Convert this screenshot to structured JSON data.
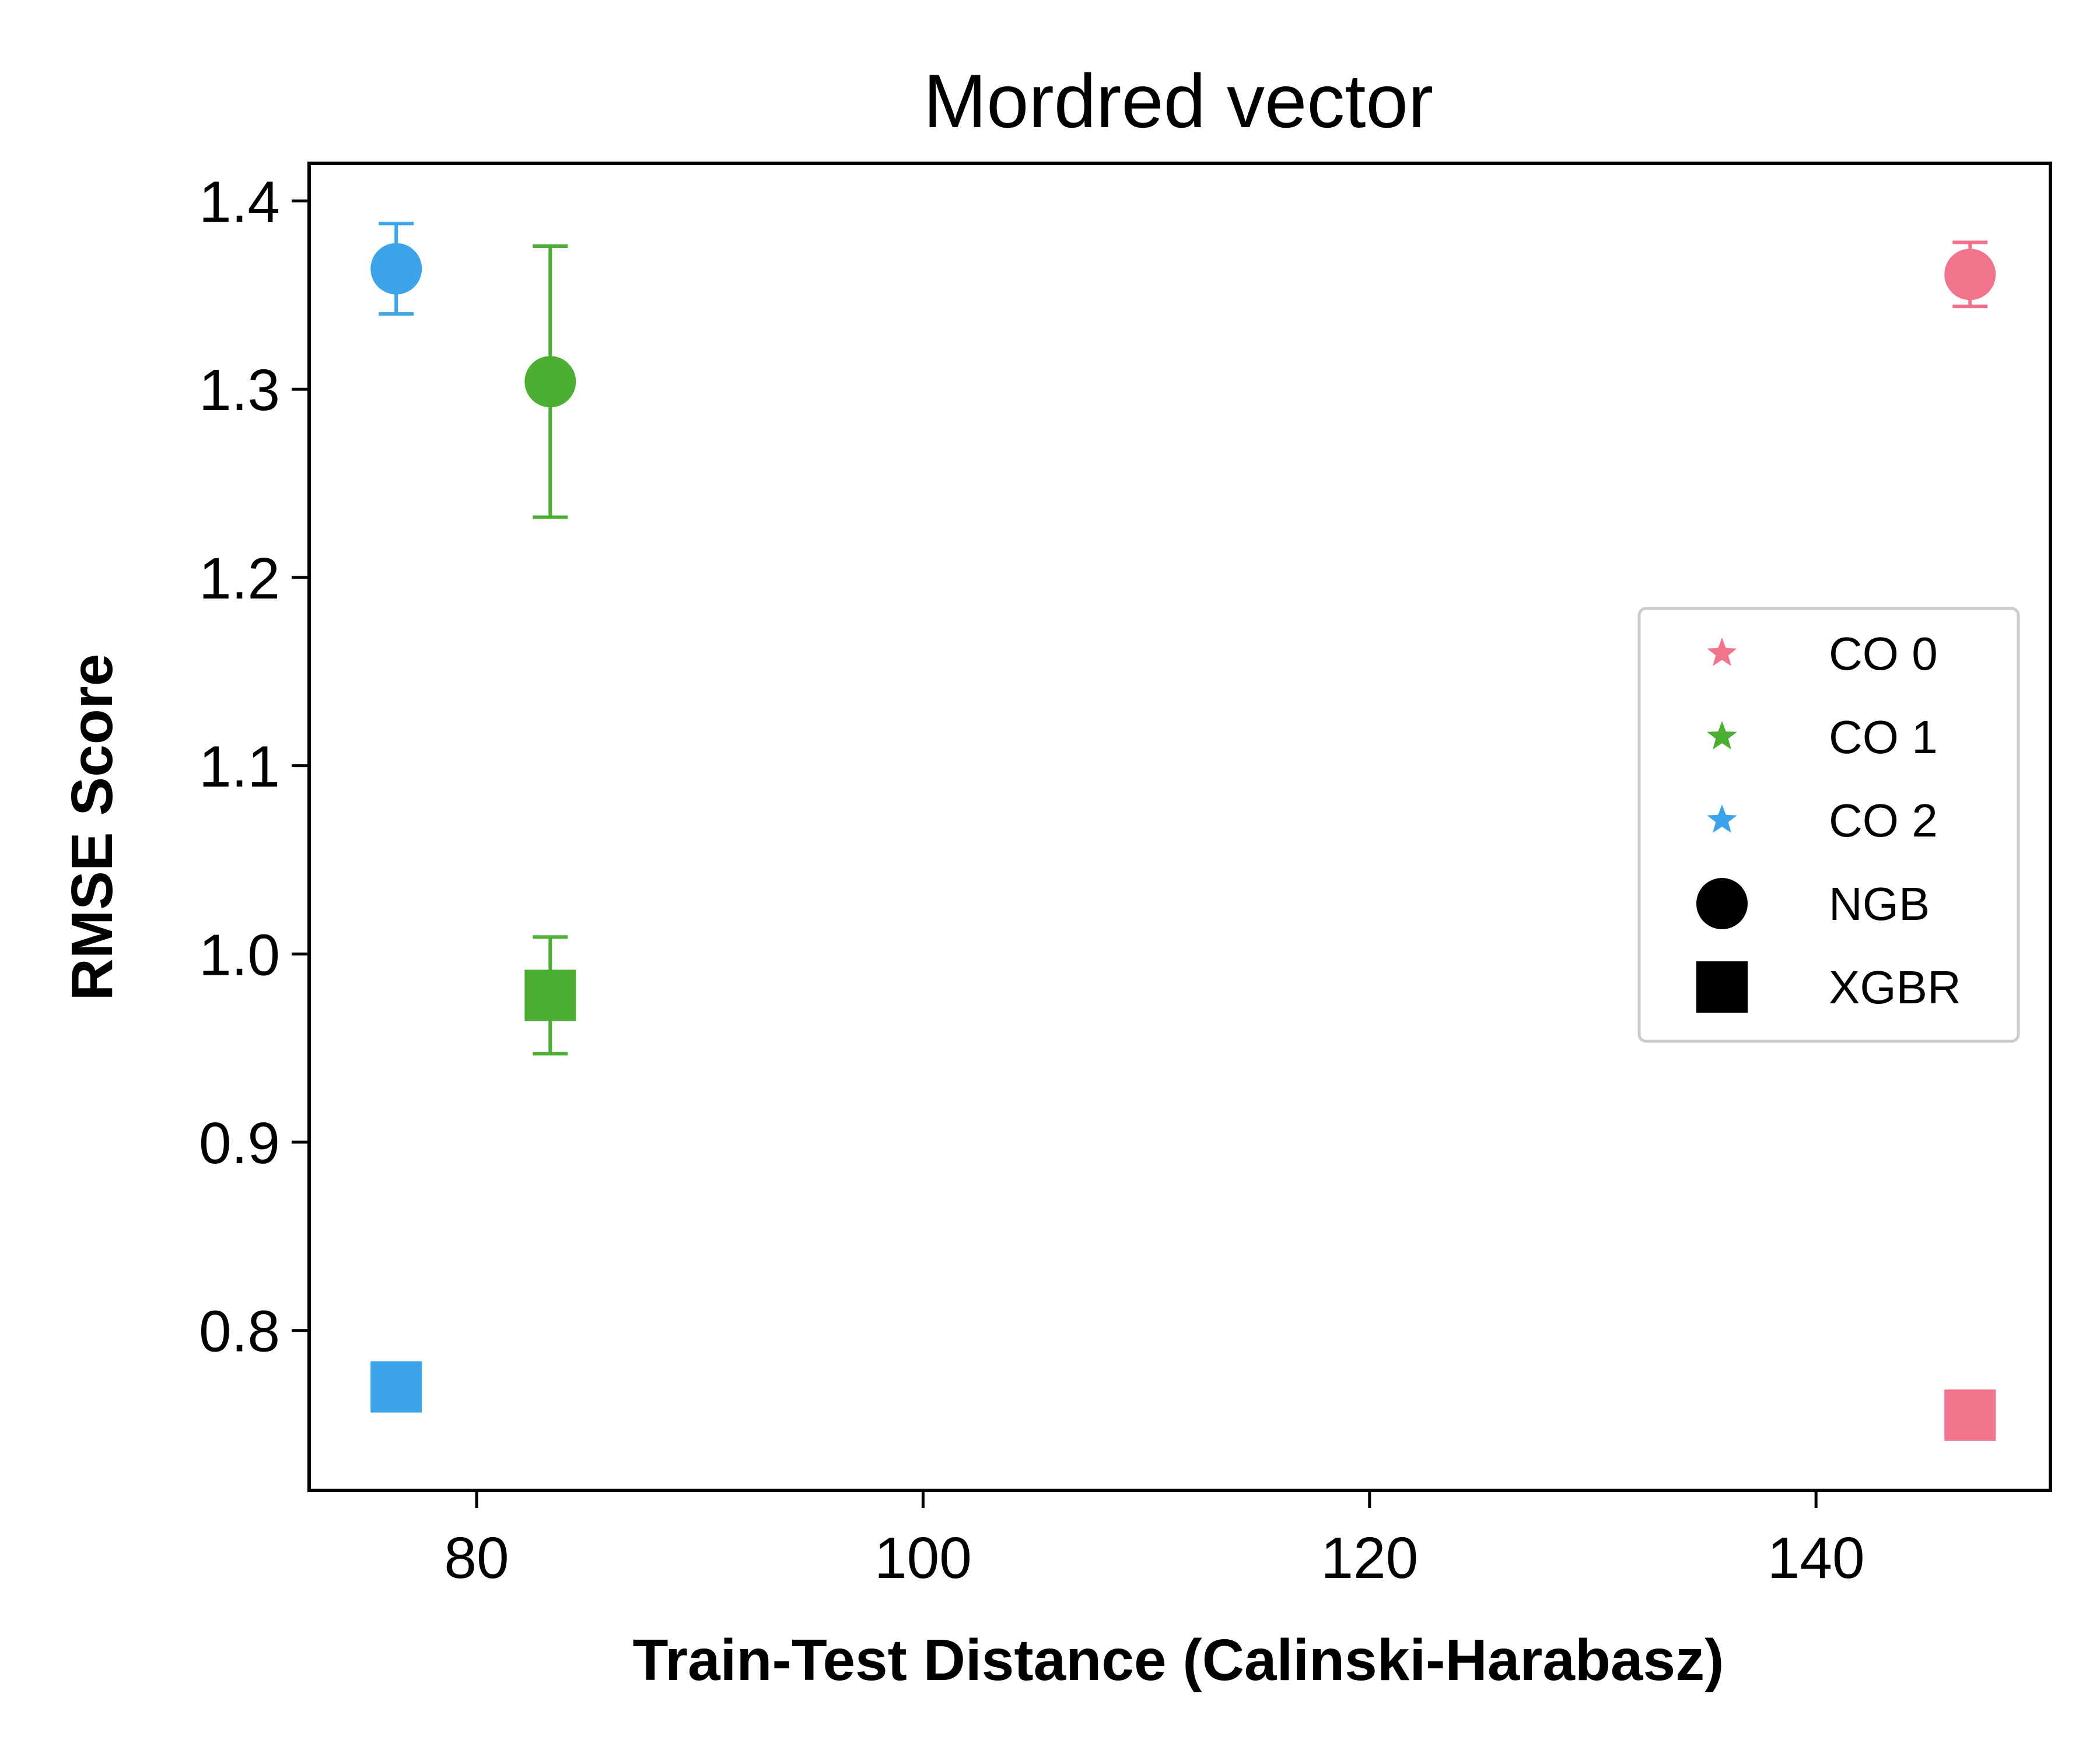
{
  "chart_data": {
    "type": "scatter",
    "title": "Mordred vector",
    "xlabel": "Train-Test Distance (Calinski-Harabasz)",
    "ylabel": "RMSE Score",
    "xlim": [
      72.5,
      150.5
    ],
    "ylim": [
      0.715,
      1.42
    ],
    "xticks": [
      {
        "value": 80,
        "label": "80"
      },
      {
        "value": 100,
        "label": "100"
      },
      {
        "value": 120,
        "label": "120"
      },
      {
        "value": 140,
        "label": "140"
      }
    ],
    "yticks": [
      {
        "value": 0.8,
        "label": "0.8"
      },
      {
        "value": 0.9,
        "label": "0.9"
      },
      {
        "value": 1.0,
        "label": "1.0"
      },
      {
        "value": 1.1,
        "label": "1.1"
      },
      {
        "value": 1.2,
        "label": "1.2"
      },
      {
        "value": 1.3,
        "label": "1.3"
      },
      {
        "value": 1.4,
        "label": "1.4"
      }
    ],
    "grid": false,
    "legend_position": "center-right",
    "legend": [
      {
        "label": "CO 0",
        "marker": "star",
        "color": "#f2748c"
      },
      {
        "label": "CO 1",
        "marker": "star",
        "color": "#4caf33"
      },
      {
        "label": "CO 2",
        "marker": "star",
        "color": "#3ea4ea"
      },
      {
        "label": "NGB",
        "marker": "circle",
        "color": "#000000"
      },
      {
        "label": "XGBR",
        "marker": "square",
        "color": "#000000"
      }
    ],
    "points": [
      {
        "group": "CO 2",
        "model": "NGB",
        "x": 76.4,
        "y": 1.364,
        "err_low": 1.34,
        "err_high": 1.388,
        "color": "#3ea4ea"
      },
      {
        "group": "CO 1",
        "model": "NGB",
        "x": 83.3,
        "y": 1.304,
        "err_low": 1.232,
        "err_high": 1.376,
        "color": "#4caf33"
      },
      {
        "group": "CO 0",
        "model": "NGB",
        "x": 146.9,
        "y": 1.361,
        "err_low": 1.344,
        "err_high": 1.378,
        "color": "#f2748c"
      },
      {
        "group": "CO 1",
        "model": "XGBR",
        "x": 83.3,
        "y": 0.978,
        "err_low": 0.947,
        "err_high": 1.009,
        "color": "#4caf33"
      },
      {
        "group": "CO 2",
        "model": "XGBR",
        "x": 76.4,
        "y": 0.77,
        "err_low": null,
        "err_high": null,
        "color": "#3ea4ea"
      },
      {
        "group": "CO 0",
        "model": "XGBR",
        "x": 146.9,
        "y": 0.755,
        "err_low": null,
        "err_high": null,
        "color": "#f2748c"
      }
    ]
  }
}
